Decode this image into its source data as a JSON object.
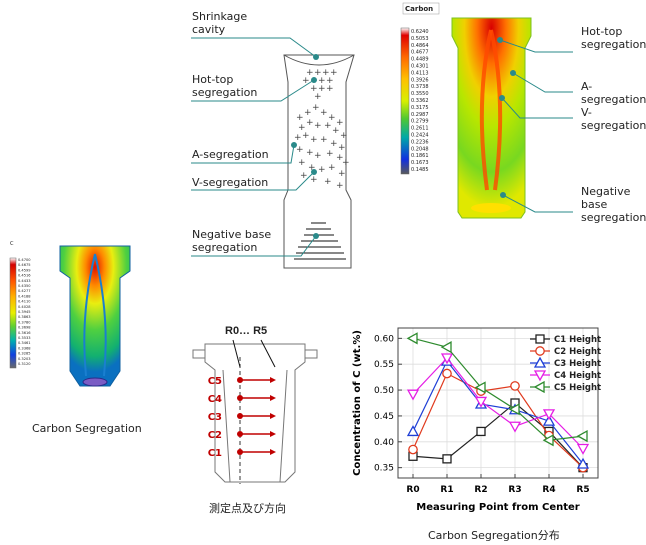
{
  "small_casting": {
    "legend_title": "C",
    "legend_values": [
      "0.4700",
      "0.4675",
      "0.4599",
      "0.4516",
      "0.4433",
      "0.4350",
      "0.4277",
      "0.4188",
      "0.4110",
      "0.4028",
      "0.3945",
      "0.3863",
      "0.3780",
      "0.3698",
      "0.3616",
      "0.3533",
      "0.3461",
      "0.3368",
      "0.3285",
      "0.3203",
      "0.3120"
    ],
    "caption": "Carbon Segregation"
  },
  "schematic": {
    "labels": {
      "shrinkage": [
        "Shrinkage",
        "cavity"
      ],
      "hottop": [
        "Hot-top",
        "segregation"
      ],
      "aseg": "A-segregation",
      "vseg": "V-segregation",
      "negbase": [
        "Negative base",
        "segregation"
      ]
    }
  },
  "contour": {
    "legend_title": "Carbon",
    "legend_values": [
      "0.6240",
      "0.5053",
      "0.4864",
      "0.4677",
      "0.4489",
      "0.4301",
      "0.4113",
      "0.3926",
      "0.3738",
      "0.3550",
      "0.3362",
      "0.3175",
      "0.2987",
      "0.2799",
      "0.2611",
      "0.2424",
      "0.2236",
      "0.2048",
      "0.1861",
      "0.1673",
      "0.1485"
    ],
    "labels": {
      "hottop": [
        "Hot-top",
        "segregation"
      ],
      "aseg": "A-segregation",
      "vseg": "V-segregation",
      "negbase": [
        "Negative base",
        "segregation"
      ]
    }
  },
  "measure": {
    "title": "R0… R5",
    "points": [
      "C5",
      "C4",
      "C3",
      "C2",
      "C1"
    ],
    "caption": "測定点及び方向"
  },
  "chart_data": {
    "type": "line",
    "categories": [
      "R0",
      "R1",
      "R2",
      "R3",
      "R4",
      "R5"
    ],
    "xlabel": "Measuring Point from Center",
    "ylabel": "Concentration of C (wt.%)",
    "ylim": [
      0.33,
      0.62
    ],
    "yticks": [
      "0.35",
      "0.40",
      "0.45",
      "0.50",
      "0.55",
      "0.60"
    ],
    "ytick_values": [
      0.35,
      0.4,
      0.45,
      0.5,
      0.55,
      0.6
    ],
    "legend_position": "top-right",
    "series": [
      {
        "name": "C1 Height",
        "color": "#222222",
        "marker": "square",
        "values": [
          0.372,
          0.367,
          0.42,
          0.475,
          0.42,
          0.35
        ]
      },
      {
        "name": "C2 Height",
        "color": "#e03a1e",
        "marker": "circle",
        "values": [
          0.385,
          0.532,
          0.498,
          0.508,
          0.412,
          0.35
        ]
      },
      {
        "name": "C3 Height",
        "color": "#1f3fd6",
        "marker": "triangle-up",
        "values": [
          0.42,
          0.556,
          0.473,
          0.462,
          0.44,
          0.357
        ]
      },
      {
        "name": "C4 Height",
        "color": "#e51ee5",
        "marker": "triangle-down",
        "values": [
          0.492,
          0.562,
          0.478,
          0.43,
          0.454,
          0.387
        ]
      },
      {
        "name": "C5 Height",
        "color": "#2e8b2e",
        "marker": "triangle-left",
        "values": [
          0.6,
          0.583,
          0.505,
          0.463,
          0.403,
          0.411
        ]
      }
    ],
    "caption": "Carbon Segregation分布"
  }
}
